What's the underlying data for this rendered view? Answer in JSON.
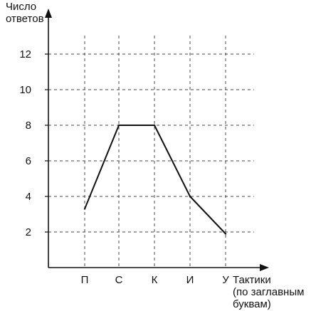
{
  "chart_data": {
    "type": "line",
    "categories": [
      "П",
      "С",
      "К",
      "И",
      "У"
    ],
    "series": [
      {
        "values": [
          3.3,
          8,
          8,
          4,
          1.9
        ]
      }
    ],
    "ylabel_lines": [
      "Число",
      "ответов"
    ],
    "xlabel_lines": [
      "Тактики",
      "(по заглавным",
      "буквам)"
    ],
    "yticks": [
      2,
      4,
      6,
      8,
      10,
      12
    ],
    "yticks_display": [
      "2",
      "4",
      "6",
      "8",
      "10",
      "12"
    ],
    "ylim": [
      0,
      14
    ],
    "grid": true
  },
  "style": {
    "line_color": "#111111",
    "grid_color": "#444444",
    "background": "#ffffff"
  }
}
